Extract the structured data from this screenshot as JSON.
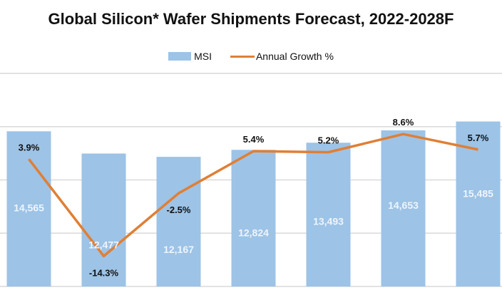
{
  "title": "Global Silicon* Wafer Shipments Forecast, 2022-2028F",
  "chart_data": {
    "type": "bar+line",
    "title": "Global Silicon* Wafer Shipments Forecast, 2022-2028F",
    "legend_position": "top",
    "grid": true,
    "ylim": [
      0,
      20000
    ],
    "y2lim": [
      -20,
      20
    ],
    "series": [
      {
        "name": "MSI",
        "type": "bar",
        "color": "#9dc3e6",
        "values": [
          14565,
          12477,
          12167,
          12824,
          13493,
          14653,
          15485
        ],
        "labels": [
          "14,565",
          "12,477",
          "12,167",
          "12,824",
          "13,493",
          "14,653",
          "15,485"
        ]
      },
      {
        "name": "Annual Growth %",
        "type": "line",
        "color": "#e07f35",
        "axis": "secondary",
        "values": [
          3.9,
          -14.3,
          -2.5,
          5.4,
          5.2,
          8.6,
          5.7
        ],
        "labels": [
          "3.9%",
          "-14.3%",
          "-2.5%",
          "5.4%",
          "5.2%",
          "8.6%",
          "5.7%"
        ]
      }
    ]
  }
}
